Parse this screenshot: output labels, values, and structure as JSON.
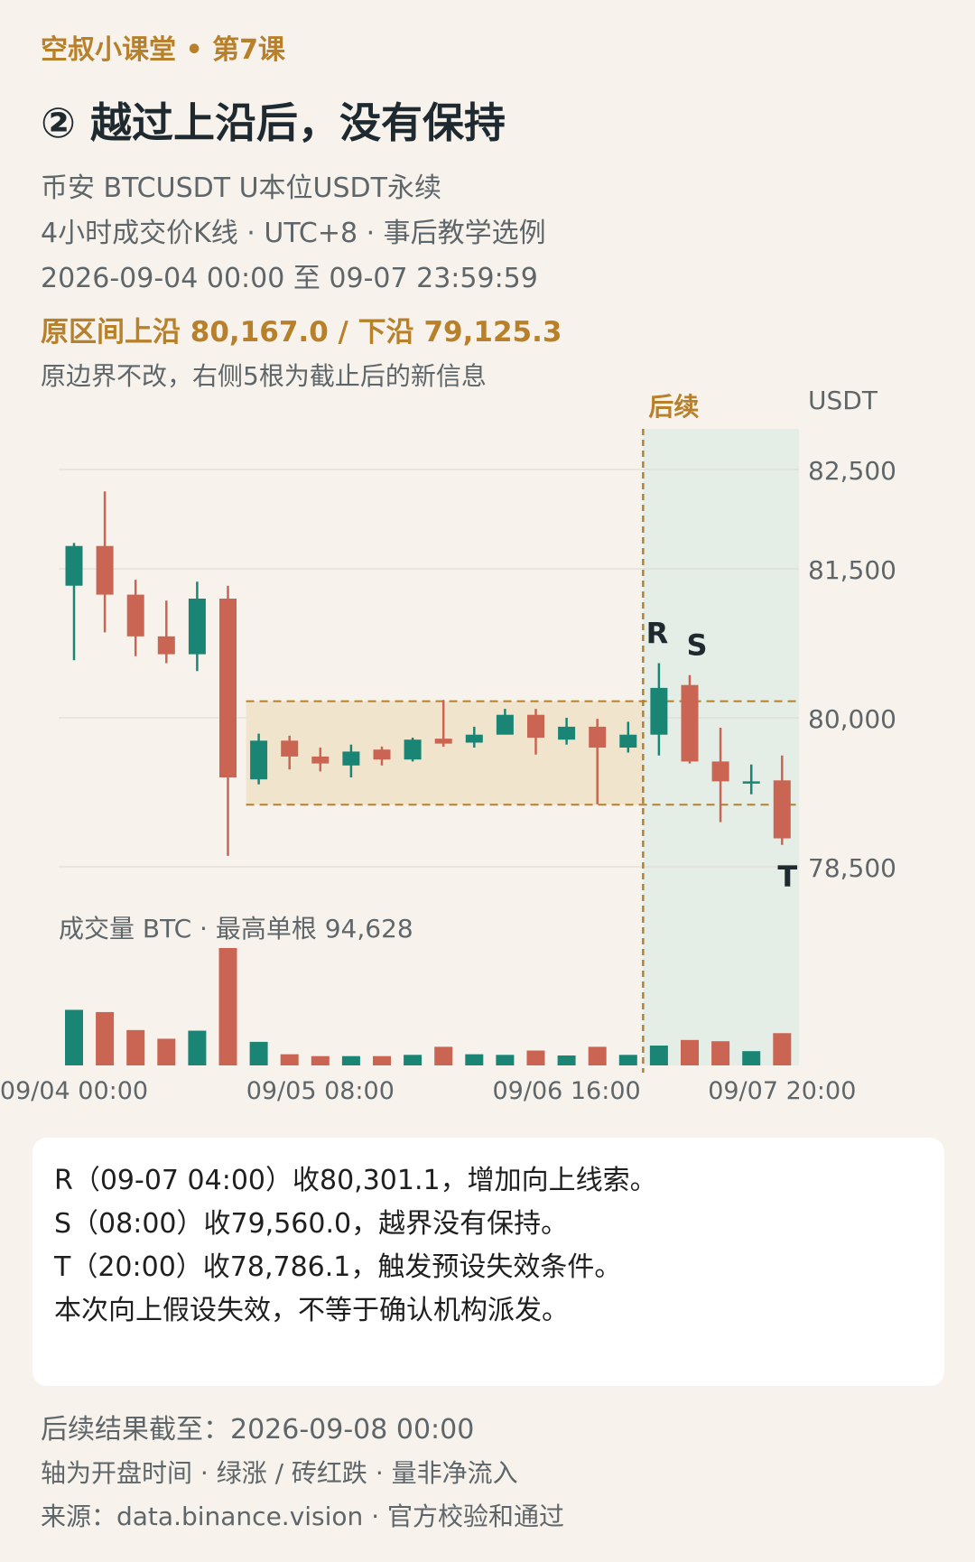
{
  "header": {
    "kicker": "空叔小课堂 • 第7课",
    "title": "② 越过上沿后，没有保持",
    "line1": "币安 BTCUSDT U本位USDT永续",
    "line2": "4小时成交价K线 · UTC+8 · 事后教学选例",
    "line3": "2026-09-04 00:00 至 09-07 23:59:59",
    "bounds": "原区间上沿 80,167.0 / 下沿 79,125.3",
    "note": "原边界不改，右侧5根为截止后的新信息"
  },
  "colors": {
    "up": "#1a8575",
    "down": "#c96552",
    "accent": "#b8802a",
    "range_fill": "#f1e4cc",
    "followup_fill": "#e4ede6"
  },
  "chart_data": {
    "type": "candlestick",
    "y_unit": "USDT",
    "y_ticks": [
      82500,
      81500,
      80000,
      78500
    ],
    "ylim": [
      78000,
      83000
    ],
    "x_tick_labels": [
      {
        "index": 0,
        "label": "09/04 00:00"
      },
      {
        "index": 8,
        "label": "09/05 08:00"
      },
      {
        "index": 16,
        "label": "09/06 16:00"
      },
      {
        "index": 23,
        "label": "09/07 20:00"
      }
    ],
    "range": {
      "upper": 80167.0,
      "lower": 79125.3
    },
    "followup_label": "后续",
    "followup_start_index": 19,
    "candles": [
      {
        "o": 81330,
        "h": 81760,
        "l": 80580,
        "c": 81730
      },
      {
        "o": 81730,
        "h": 82280,
        "l": 80860,
        "c": 81240
      },
      {
        "o": 81240,
        "h": 81390,
        "l": 80620,
        "c": 80820
      },
      {
        "o": 80820,
        "h": 81180,
        "l": 80550,
        "c": 80640
      },
      {
        "o": 80640,
        "h": 81370,
        "l": 80470,
        "c": 81200
      },
      {
        "o": 81200,
        "h": 81330,
        "l": 78610,
        "c": 79400
      },
      {
        "o": 79380,
        "h": 79840,
        "l": 79330,
        "c": 79770
      },
      {
        "o": 79770,
        "h": 79820,
        "l": 79480,
        "c": 79610
      },
      {
        "o": 79610,
        "h": 79700,
        "l": 79460,
        "c": 79540
      },
      {
        "o": 79520,
        "h": 79730,
        "l": 79400,
        "c": 79660
      },
      {
        "o": 79680,
        "h": 79710,
        "l": 79520,
        "c": 79580
      },
      {
        "o": 79580,
        "h": 79800,
        "l": 79560,
        "c": 79780
      },
      {
        "o": 79790,
        "h": 80180,
        "l": 79710,
        "c": 79740
      },
      {
        "o": 79750,
        "h": 79910,
        "l": 79700,
        "c": 79830
      },
      {
        "o": 79830,
        "h": 80090,
        "l": 79880,
        "c": 80030
      },
      {
        "o": 80030,
        "h": 80090,
        "l": 79630,
        "c": 79800
      },
      {
        "o": 79780,
        "h": 80000,
        "l": 79730,
        "c": 79910
      },
      {
        "o": 79910,
        "h": 79990,
        "l": 79130,
        "c": 79700
      },
      {
        "o": 79700,
        "h": 79960,
        "l": 79650,
        "c": 79830
      },
      {
        "o": 79830,
        "h": 80550,
        "l": 79620,
        "c": 80301.1
      },
      {
        "o": 80330,
        "h": 80430,
        "l": 79540,
        "c": 79560.0
      },
      {
        "o": 79560,
        "h": 79900,
        "l": 78950,
        "c": 79360
      },
      {
        "o": 79360,
        "h": 79530,
        "l": 79230,
        "c": 79360
      },
      {
        "o": 79370,
        "h": 79620,
        "l": 78720,
        "c": 78786.1
      }
    ],
    "annotations": [
      {
        "index": 19,
        "label": "R",
        "pos": "above"
      },
      {
        "index": 20,
        "label": "S",
        "pos": "above"
      },
      {
        "index": 23,
        "label": "T",
        "pos": "below"
      }
    ],
    "volume": {
      "label": "成交量 BTC · 最高单根 94,628",
      "max": 94628,
      "values": [
        44800,
        43000,
        28500,
        21500,
        28000,
        94628,
        19000,
        9000,
        7500,
        7500,
        7500,
        8500,
        15000,
        9000,
        8500,
        12000,
        8000,
        15000,
        8500,
        16000,
        20500,
        19500,
        11500,
        26000
      ]
    }
  },
  "card": {
    "lines": [
      "R（09-07 04:00）收80,301.1，增加向上线索。",
      "S（08:00）收79,560.0，越界没有保持。",
      "T（20:00）收78,786.1，触发预设失效条件。",
      "本次向上假设失效，不等于确认机构派发。"
    ]
  },
  "footer": {
    "line1": "后续结果截至：2026-09-08 00:00",
    "line2": "轴为开盘时间 · 绿涨 / 砖红跌 · 量非净流入",
    "line3": "来源：data.binance.vision · 官方校验和通过"
  }
}
